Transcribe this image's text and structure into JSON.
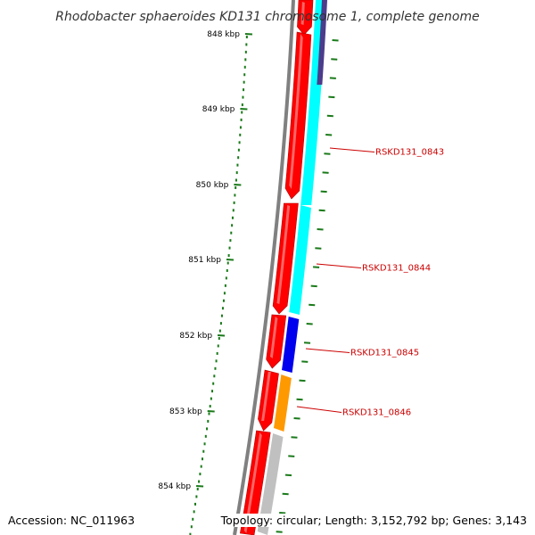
{
  "title": "Rhodobacter sphaeroides KD131 chromosome 1, complete genome",
  "scale": {
    "unit_labels": [
      "848 kbp",
      "849 kbp",
      "850 kbp",
      "851 kbp",
      "852 kbp",
      "853 kbp",
      "854 kbp"
    ],
    "tick_color": "#1a7a1a"
  },
  "tracks": {
    "backbone_color": "#808080",
    "cds_color": "#ff0000",
    "second_track_colors": {
      "top": "#4b3c8c",
      "cyan": "#00ffff",
      "blue": "#0000ee",
      "orange": "#ff9900",
      "grey": "#c0c0c0"
    }
  },
  "gene_labels": [
    {
      "name": "RSKD131_0843",
      "color": "#cc0000"
    },
    {
      "name": "RSKD131_0844",
      "color": "#cc0000"
    },
    {
      "name": "RSKD131_0845",
      "color": "#cc0000"
    },
    {
      "name": "RSKD131_0846",
      "color": "#cc0000"
    }
  ],
  "footer": {
    "accession": "Accession: NC_011963",
    "topology": "Topology: circular; Length: 3,152,792 bp; Genes: 3,143"
  }
}
